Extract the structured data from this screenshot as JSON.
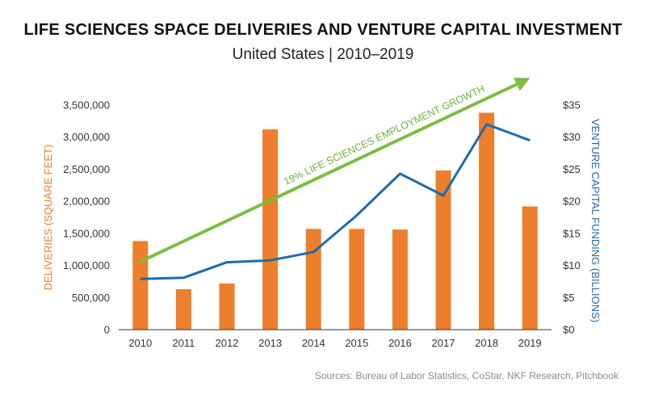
{
  "header": {
    "title": "LIFE SCIENCES SPACE DELIVERIES AND VENTURE CAPITAL INVESTMENT",
    "subtitle": "United States  |  2010–2019"
  },
  "footer": {
    "source": "Sources: Bureau of Labor Statistics, CoStar, NKF Research, Pitchbook"
  },
  "colors": {
    "bars": "#ec7e2c",
    "vc_line": "#1f6aad",
    "growth_arrow": "#7cbd42",
    "axis": "#333333"
  },
  "chart_data": {
    "type": "bar",
    "title": "LIFE SCIENCES SPACE DELIVERIES AND VENTURE CAPITAL INVESTMENT",
    "subtitle": "United States  |  2010–2019",
    "categories": [
      "2010",
      "2011",
      "2012",
      "2013",
      "2014",
      "2015",
      "2016",
      "2017",
      "2018",
      "2019"
    ],
    "series": [
      {
        "name": "DELIVERIES (SQUARE FEET)",
        "type": "bar",
        "axis": "left",
        "values": [
          1380000,
          630000,
          720000,
          3120000,
          1570000,
          1570000,
          1560000,
          2480000,
          3380000,
          1920000
        ]
      },
      {
        "name": "VENTURE CAPITAL FUNDING (BILLIONS)",
        "type": "line",
        "axis": "right",
        "values": [
          7.9,
          8.1,
          10.5,
          10.8,
          12.1,
          17.8,
          24.3,
          20.9,
          32.0,
          29.5
        ]
      }
    ],
    "ylabel": "DELIVERIES (SQUARE FEET)",
    "ylim": [
      0,
      3500000
    ],
    "yticks": [
      "0",
      "500,000",
      "1,000,000",
      "1,500,000",
      "2,000,000",
      "2,500,000",
      "3,000,000",
      "3,500,000"
    ],
    "y2label": "VENTURE CAPITAL FUNDING (BILLIONS)",
    "y2lim": [
      0,
      35
    ],
    "y2ticks": [
      "$0",
      "$5",
      "$10",
      "$15",
      "$20",
      "$25",
      "$30",
      "$35"
    ],
    "annotation": {
      "text": "19% LIFE SCIENCES EMPLOYMENT GROWTH",
      "start": {
        "x": "2010",
        "y": 10.6
      },
      "end": {
        "x": "2019",
        "y": 39.2
      }
    },
    "grid": false
  }
}
